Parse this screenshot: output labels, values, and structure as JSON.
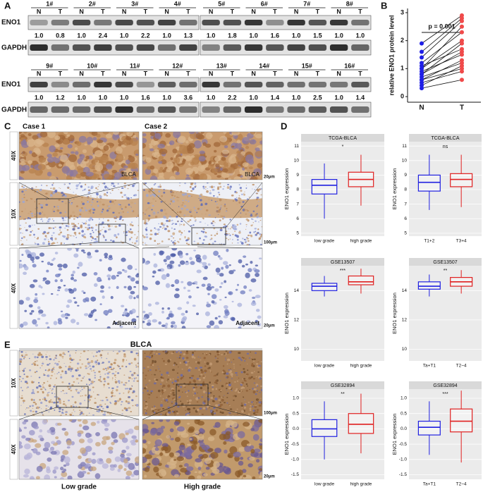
{
  "panel_labels": [
    "A",
    "B",
    "C",
    "D",
    "E"
  ],
  "western_blot": {
    "proteins": [
      "ENO1",
      "GAPDH"
    ],
    "lane_labels": [
      "N",
      "T"
    ],
    "groups": [
      {
        "samples": [
          "1#",
          "2#",
          "3#",
          "4#"
        ],
        "eno1_ratios": [
          "1.0",
          "0.8",
          "1.0",
          "2.4",
          "1.0",
          "2.2",
          "1.0",
          "1.3"
        ]
      },
      {
        "samples": [
          "5#",
          "6#",
          "7#",
          "8#"
        ],
        "eno1_ratios": [
          "1.0",
          "1.8",
          "1.0",
          "1.6",
          "1.0",
          "1.5",
          "1.0",
          "1.0"
        ]
      },
      {
        "samples": [
          "9#",
          "10#",
          "11#",
          "12#"
        ],
        "eno1_ratios": [
          "1.0",
          "1.2",
          "1.0",
          "1.0",
          "1.0",
          "1.6",
          "1.0",
          "3.6"
        ]
      },
      {
        "samples": [
          "13#",
          "14#",
          "15#",
          "16#"
        ],
        "eno1_ratios": [
          "1.0",
          "2.2",
          "1.0",
          "1.4",
          "1.0",
          "2.5",
          "1.0",
          "1.4"
        ]
      }
    ]
  },
  "chart_data": [
    {
      "type": "paired",
      "ylabel": "relative ENO1 protein level",
      "annotation": "p = 0.001",
      "ylim": [
        -0.2,
        3.15
      ],
      "yticks": [
        0,
        1,
        2,
        3
      ],
      "series": [
        {
          "name": "N",
          "color": "#1f1fe6",
          "values": [
            0.3,
            0.4,
            0.5,
            0.6,
            0.6,
            0.7,
            0.8,
            0.8,
            0.9,
            1.0,
            1.0,
            1.1,
            1.2,
            1.4,
            1.6,
            1.9
          ]
        },
        {
          "name": "T",
          "color": "#f04a4a",
          "values": [
            0.6,
            1.1,
            0.9,
            1.3,
            1.0,
            1.2,
            1.6,
            1.9,
            1.5,
            2.0,
            2.5,
            1.7,
            2.3,
            2.7,
            2.8,
            2.9
          ]
        }
      ]
    },
    {
      "type": "box",
      "title": "TCGA-BLCA",
      "annotation": "*",
      "ylabel": "ENO1 expression",
      "categories": [
        "low grade",
        "high grade"
      ],
      "colors": [
        "#2020e0",
        "#e02020"
      ],
      "ylim": [
        4.8,
        11.3
      ],
      "yticks": [
        5,
        6,
        7,
        8,
        9,
        10,
        11
      ],
      "boxes": [
        {
          "whisker_low": 6.0,
          "q1": 7.7,
          "median": 8.3,
          "q3": 8.7,
          "whisker_high": 9.8
        },
        {
          "whisker_low": 6.9,
          "q1": 8.2,
          "median": 8.7,
          "q3": 9.2,
          "whisker_high": 10.4
        }
      ]
    },
    {
      "type": "box",
      "title": "TCGA-BLCA",
      "annotation": "ns",
      "ylabel": "ENO1 expression",
      "categories": [
        "T1+2",
        "T3+4"
      ],
      "colors": [
        "#2020e0",
        "#e02020"
      ],
      "ylim": [
        4.8,
        11.3
      ],
      "yticks": [
        5,
        6,
        7,
        8,
        9,
        10,
        11
      ],
      "boxes": [
        {
          "whisker_low": 6.6,
          "q1": 7.9,
          "median": 8.5,
          "q3": 9.0,
          "whisker_high": 10.4
        },
        {
          "whisker_low": 6.8,
          "q1": 8.2,
          "median": 8.7,
          "q3": 9.1,
          "whisker_high": 10.4
        }
      ]
    },
    {
      "type": "box",
      "title": "GSE13507",
      "annotation": "***",
      "ylabel": "ENO1 expression",
      "categories": [
        "low grade",
        "high grade"
      ],
      "colors": [
        "#2020e0",
        "#e02020"
      ],
      "ylim": [
        9.2,
        15.7
      ],
      "yticks": [
        10,
        12,
        14
      ],
      "boxes": [
        {
          "whisker_low": 13.6,
          "q1": 14.0,
          "median": 14.3,
          "q3": 14.5,
          "whisker_high": 15.0
        },
        {
          "whisker_low": 13.8,
          "q1": 14.4,
          "median": 14.6,
          "q3": 15.0,
          "whisker_high": 15.5
        }
      ]
    },
    {
      "type": "box",
      "title": "GSE13507",
      "annotation": "**",
      "ylabel": "ENO1 expression",
      "categories": [
        "Ta+T1",
        "T2~4"
      ],
      "colors": [
        "#2020e0",
        "#e02020"
      ],
      "ylim": [
        9.2,
        15.7
      ],
      "yticks": [
        10,
        12,
        14
      ],
      "boxes": [
        {
          "whisker_low": 13.6,
          "q1": 14.1,
          "median": 14.3,
          "q3": 14.6,
          "whisker_high": 15.1
        },
        {
          "whisker_low": 13.8,
          "q1": 14.3,
          "median": 14.6,
          "q3": 14.9,
          "whisker_high": 15.4
        }
      ]
    },
    {
      "type": "box",
      "title": "GSE32894",
      "annotation": "**",
      "ylabel": "ENO1 expression",
      "categories": [
        "low grade",
        "high grade"
      ],
      "colors": [
        "#2020e0",
        "#e02020"
      ],
      "ylim": [
        -1.65,
        1.3
      ],
      "yticks": [
        -1.5,
        {
          "value": -1,
          "label": "-1.0"
        },
        -0.5,
        {
          "value": 0,
          "label": "0.0"
        },
        0.5,
        {
          "value": 1,
          "label": "1.0"
        }
      ],
      "boxes": [
        {
          "whisker_low": -1.0,
          "q1": -0.25,
          "median": 0.0,
          "q3": 0.3,
          "whisker_high": 0.9
        },
        {
          "whisker_low": -0.8,
          "q1": -0.15,
          "median": 0.15,
          "q3": 0.5,
          "whisker_high": 1.15
        }
      ]
    },
    {
      "type": "box",
      "title": "GSE32894",
      "annotation": "***",
      "ylabel": "ENO1 expression",
      "categories": [
        "Ta+T1",
        "T2~4"
      ],
      "colors": [
        "#2020e0",
        "#e02020"
      ],
      "ylim": [
        -1.65,
        1.3
      ],
      "yticks": [
        -1.5,
        {
          "value": -1,
          "label": "-1.0"
        },
        -0.5,
        {
          "value": 0,
          "label": "0.0"
        },
        0.5,
        {
          "value": 1,
          "label": "1.0"
        }
      ],
      "boxes": [
        {
          "whisker_low": -0.85,
          "q1": -0.2,
          "median": 0.05,
          "q3": 0.25,
          "whisker_high": 0.9
        },
        {
          "whisker_low": -1.1,
          "q1": -0.1,
          "median": 0.25,
          "q3": 0.65,
          "whisker_high": 1.25
        }
      ]
    }
  ],
  "ihc_c": {
    "columns": [
      "Case 1",
      "Case 2"
    ],
    "rows": [
      "40X",
      "10X",
      "40X"
    ],
    "tumor_label": "BLCA",
    "adjacent_label": "Adjacent",
    "scale_bars": [
      "20μm",
      "100μm",
      "20μm"
    ]
  },
  "ihc_e": {
    "title": "BLCA",
    "rows": [
      "10X",
      "40X"
    ],
    "columns": [
      "Low grade",
      "High grade"
    ],
    "scale_bars": [
      "100μm",
      "20μm"
    ]
  }
}
